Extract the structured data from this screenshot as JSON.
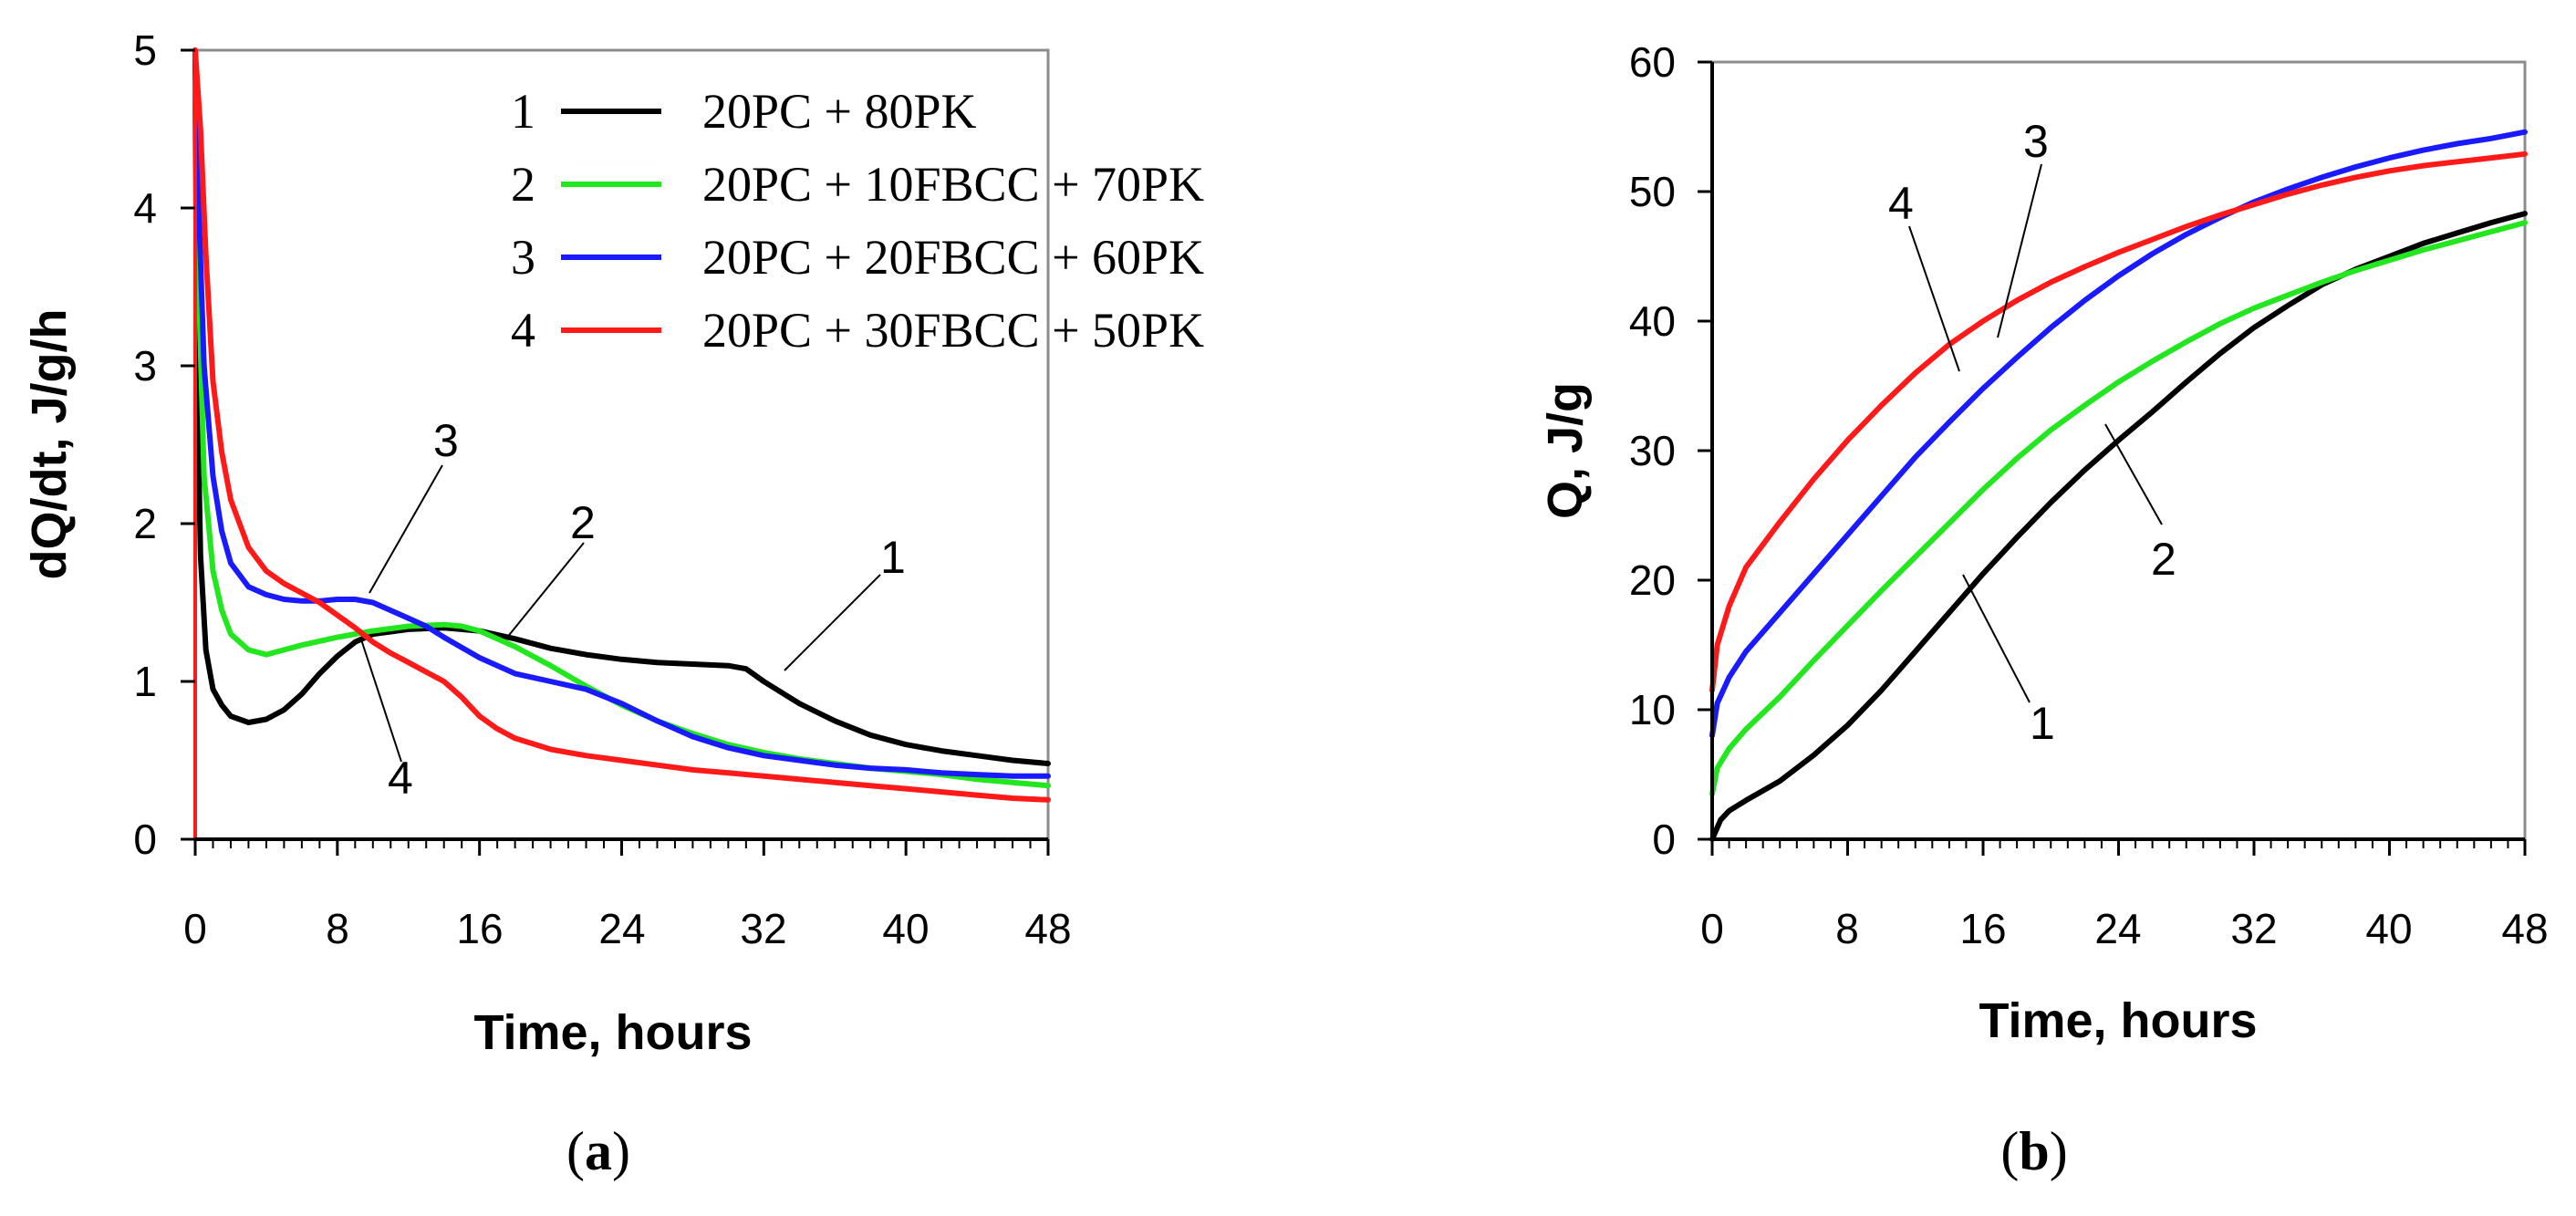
{
  "colors": {
    "s1": "#000000",
    "s2": "#22e61e",
    "s3": "#1a1aff",
    "s4": "#ff1a1a"
  },
  "chart_data": [
    {
      "type": "line",
      "panel": "a",
      "panel_label": "a",
      "xlabel": "Time, hours",
      "ylabel": "dQ/dt,  J/g/h",
      "xlim": [
        0,
        48
      ],
      "ylim": [
        0,
        5
      ],
      "xticks": [
        "0",
        "8",
        "16",
        "24",
        "32",
        "40",
        "48"
      ],
      "yticks": [
        "0",
        "1",
        "2",
        "3",
        "4",
        "5"
      ],
      "legend": [
        {
          "num": "1",
          "label": "20PC + 80PK"
        },
        {
          "num": "2",
          "label": "20PC + 10FBCC + 70PK"
        },
        {
          "num": "3",
          "label": "20PC + 20FBCC + 60PK"
        },
        {
          "num": "4",
          "label": "20PC + 30FBCC + 50PK"
        }
      ],
      "callouts": [
        "1",
        "2",
        "3",
        "4"
      ],
      "series": [
        {
          "name": "1",
          "x": [
            0,
            0.1,
            0.3,
            0.6,
            1,
            1.5,
            2,
            3,
            4,
            5,
            6,
            7,
            8,
            9,
            10,
            12,
            14,
            16,
            18,
            20,
            22,
            24,
            26,
            28,
            30,
            31,
            32,
            34,
            36,
            38,
            40,
            42,
            44,
            46,
            48
          ],
          "y": [
            5,
            3.0,
            1.8,
            1.2,
            0.95,
            0.85,
            0.78,
            0.74,
            0.76,
            0.82,
            0.92,
            1.05,
            1.16,
            1.25,
            1.3,
            1.33,
            1.34,
            1.32,
            1.27,
            1.21,
            1.17,
            1.14,
            1.12,
            1.11,
            1.1,
            1.08,
            1.0,
            0.86,
            0.75,
            0.66,
            0.6,
            0.56,
            0.53,
            0.5,
            0.48
          ]
        },
        {
          "name": "2",
          "x": [
            0,
            0.2,
            0.5,
            1,
            1.5,
            2,
            3,
            4,
            5,
            6,
            8,
            10,
            12,
            14,
            15,
            16,
            18,
            20,
            22,
            24,
            26,
            28,
            30,
            32,
            34,
            36,
            38,
            40,
            42,
            44,
            46,
            48
          ],
          "y": [
            5,
            3.5,
            2.3,
            1.7,
            1.45,
            1.3,
            1.2,
            1.17,
            1.2,
            1.23,
            1.28,
            1.32,
            1.35,
            1.36,
            1.35,
            1.32,
            1.22,
            1.1,
            0.97,
            0.85,
            0.75,
            0.67,
            0.6,
            0.55,
            0.51,
            0.48,
            0.45,
            0.43,
            0.41,
            0.38,
            0.36,
            0.34
          ]
        },
        {
          "name": "3",
          "x": [
            0,
            0.2,
            0.5,
            1,
            1.5,
            2,
            3,
            4,
            5,
            6,
            7,
            8,
            9,
            10,
            11,
            12,
            13,
            14,
            16,
            18,
            20,
            22,
            24,
            26,
            28,
            30,
            32,
            34,
            36,
            38,
            40,
            42,
            44,
            46,
            48
          ],
          "y": [
            5,
            4.0,
            3.0,
            2.3,
            1.95,
            1.75,
            1.6,
            1.55,
            1.52,
            1.51,
            1.51,
            1.52,
            1.52,
            1.5,
            1.45,
            1.4,
            1.35,
            1.28,
            1.15,
            1.05,
            1.0,
            0.95,
            0.86,
            0.75,
            0.65,
            0.58,
            0.53,
            0.5,
            0.47,
            0.45,
            0.44,
            0.42,
            0.41,
            0.4,
            0.4
          ]
        },
        {
          "name": "4",
          "x": [
            0,
            0.3,
            0.6,
            1,
            1.5,
            2,
            3,
            4,
            5,
            6,
            7,
            8,
            9,
            10,
            11,
            12,
            13,
            14,
            15,
            16,
            17,
            18,
            20,
            22,
            24,
            26,
            28,
            30,
            32,
            34,
            36,
            38,
            40,
            42,
            44,
            46,
            48
          ],
          "y": [
            5,
            4.5,
            3.7,
            2.9,
            2.45,
            2.15,
            1.85,
            1.7,
            1.62,
            1.56,
            1.5,
            1.42,
            1.34,
            1.25,
            1.18,
            1.12,
            1.06,
            1.0,
            0.9,
            0.78,
            0.7,
            0.64,
            0.57,
            0.53,
            0.5,
            0.47,
            0.44,
            0.42,
            0.4,
            0.38,
            0.36,
            0.34,
            0.32,
            0.3,
            0.28,
            0.26,
            0.25
          ]
        }
      ]
    },
    {
      "type": "line",
      "panel": "b",
      "panel_label": "b",
      "xlabel": "Time, hours",
      "ylabel": "Q, J/g",
      "xlim": [
        0,
        48
      ],
      "ylim": [
        0,
        60
      ],
      "xticks": [
        "0",
        "8",
        "16",
        "24",
        "32",
        "40",
        "48"
      ],
      "yticks": [
        "0",
        "10",
        "20",
        "30",
        "40",
        "50",
        "60"
      ],
      "callouts": [
        "1",
        "2",
        "3",
        "4"
      ],
      "series": [
        {
          "name": "1",
          "x": [
            0,
            0.5,
            1,
            2,
            4,
            6,
            8,
            10,
            12,
            14,
            16,
            18,
            20,
            22,
            24,
            26,
            28,
            30,
            32,
            34,
            36,
            38,
            40,
            42,
            44,
            46,
            48
          ],
          "y": [
            0,
            1.5,
            2.2,
            3.0,
            4.5,
            6.5,
            8.8,
            11.5,
            14.5,
            17.5,
            20.5,
            23.3,
            26.0,
            28.5,
            30.8,
            33.0,
            35.3,
            37.5,
            39.5,
            41.2,
            42.8,
            44.0,
            45.0,
            46.0,
            46.8,
            47.6,
            48.3
          ]
        },
        {
          "name": "2",
          "x": [
            0,
            0.3,
            1,
            2,
            4,
            6,
            8,
            10,
            12,
            14,
            16,
            18,
            20,
            22,
            24,
            26,
            28,
            30,
            32,
            34,
            36,
            38,
            40,
            42,
            44,
            46,
            48
          ],
          "y": [
            3.5,
            5.5,
            7.0,
            8.5,
            11.0,
            13.8,
            16.5,
            19.2,
            21.8,
            24.4,
            27.0,
            29.4,
            31.6,
            33.5,
            35.3,
            36.9,
            38.4,
            39.8,
            41.0,
            42.0,
            43.0,
            43.9,
            44.7,
            45.5,
            46.2,
            46.9,
            47.6
          ]
        },
        {
          "name": "3",
          "x": [
            0,
            0.3,
            1,
            2,
            4,
            6,
            8,
            10,
            12,
            14,
            16,
            18,
            20,
            22,
            24,
            26,
            28,
            30,
            32,
            34,
            36,
            38,
            40,
            42,
            44,
            46,
            48
          ],
          "y": [
            8.0,
            10.5,
            12.5,
            14.5,
            17.5,
            20.5,
            23.5,
            26.5,
            29.5,
            32.2,
            34.8,
            37.2,
            39.5,
            41.6,
            43.5,
            45.2,
            46.7,
            48.0,
            49.2,
            50.2,
            51.1,
            51.9,
            52.6,
            53.2,
            53.7,
            54.1,
            54.6
          ]
        },
        {
          "name": "4",
          "x": [
            0,
            0.3,
            1,
            2,
            4,
            6,
            8,
            10,
            12,
            14,
            16,
            18,
            20,
            22,
            24,
            26,
            28,
            30,
            32,
            34,
            36,
            38,
            40,
            42,
            44,
            46,
            48
          ],
          "y": [
            11.5,
            15.0,
            18.0,
            21.0,
            24.5,
            27.8,
            30.8,
            33.5,
            36.0,
            38.2,
            40.0,
            41.6,
            43.0,
            44.2,
            45.3,
            46.3,
            47.3,
            48.2,
            49.0,
            49.8,
            50.5,
            51.1,
            51.6,
            52.0,
            52.3,
            52.6,
            52.9
          ]
        }
      ]
    }
  ]
}
